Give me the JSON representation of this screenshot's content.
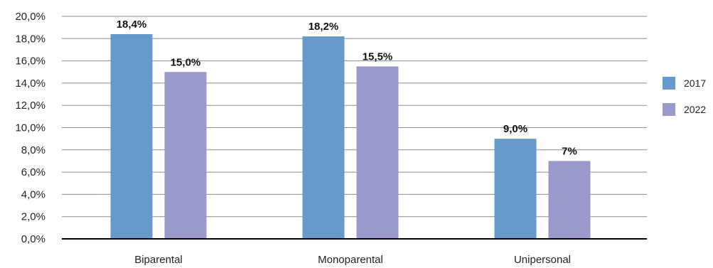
{
  "chart_data": {
    "type": "bar",
    "categories": [
      "Biparental",
      "Monoparental",
      "Unipersonal"
    ],
    "series": [
      {
        "name": "2017",
        "color": "#6699cc",
        "values": [
          18.4,
          18.2,
          9.0
        ],
        "labels": [
          "18,4%",
          "18,2%",
          "9,0%"
        ]
      },
      {
        "name": "2022",
        "color": "#9999cc",
        "values": [
          15.0,
          15.5,
          7.0
        ],
        "labels": [
          "15,0%",
          "15,5%",
          "7%"
        ]
      }
    ],
    "ylim": [
      0,
      20
    ],
    "yticks": [
      0,
      2,
      4,
      6,
      8,
      10,
      12,
      14,
      16,
      18,
      20
    ],
    "ytick_labels": [
      "0,0%",
      "2,0%",
      "4,0%",
      "6,0%",
      "8,0%",
      "10,0%",
      "12,0%",
      "14,0%",
      "16,0%",
      "18,0%",
      "20,0%"
    ],
    "grid": true,
    "legend_position": "right",
    "title": "",
    "xlabel": "",
    "ylabel": ""
  }
}
